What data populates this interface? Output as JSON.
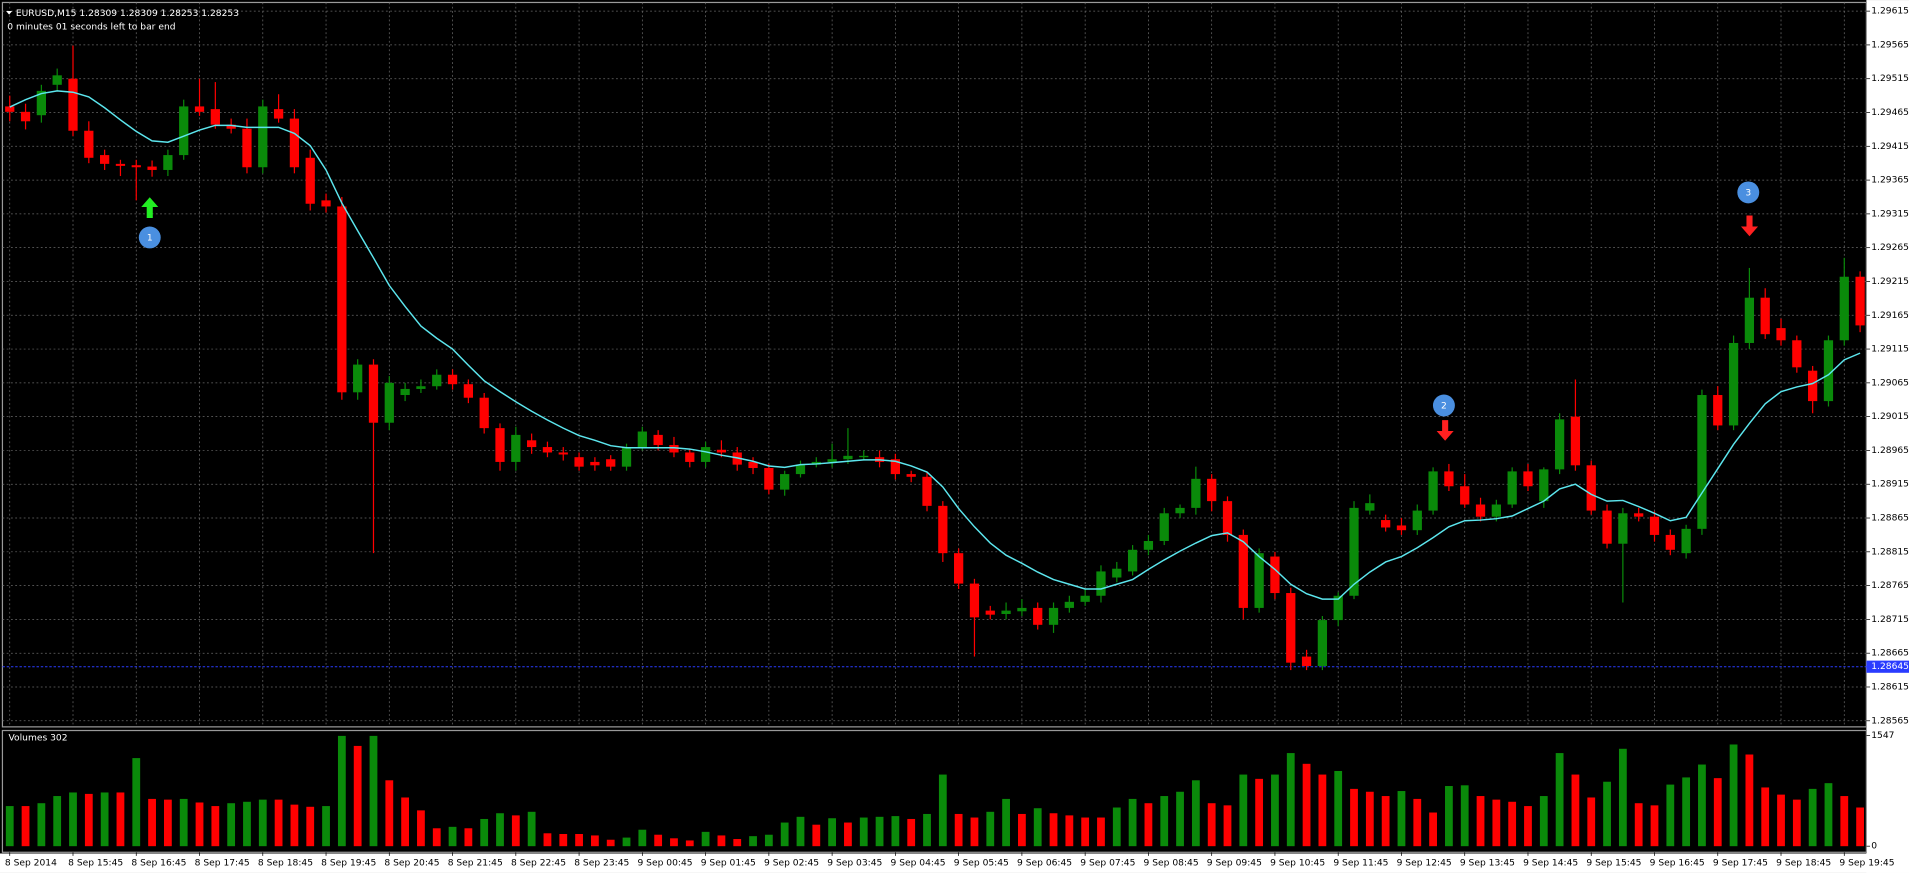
{
  "chart_data": {
    "type": "candlestick",
    "title": "EURUSD,M15 1.28309 1.28309 1.28253 1.28253",
    "subtitle": "0 minutes 01 seconds left to bar end",
    "categories": [
      "8 Sep 2014",
      null,
      null,
      null,
      "8 Sep 15:45",
      null,
      null,
      null,
      "8 Sep 16:45",
      null,
      null,
      null,
      "8 Sep 17:45",
      null,
      null,
      null,
      "8 Sep 18:45",
      null,
      null,
      null,
      "8 Sep 19:45",
      null,
      null,
      null,
      "8 Sep 20:45",
      null,
      null,
      null,
      "8 Sep 21:45",
      null,
      null,
      null,
      "8 Sep 22:45",
      null,
      null,
      null,
      "8 Sep 23:45",
      null,
      null,
      null,
      "9 Sep 00:45",
      null,
      null,
      null,
      "9 Sep 01:45",
      null,
      null,
      null,
      "9 Sep 02:45",
      null,
      null,
      null,
      "9 Sep 03:45",
      null,
      null,
      null,
      "9 Sep 04:45",
      null,
      null,
      null,
      "9 Sep 05:45",
      null,
      null,
      null,
      "9 Sep 06:45",
      null,
      null,
      null,
      "9 Sep 07:45",
      null,
      null,
      null,
      "9 Sep 08:45",
      null,
      null,
      null,
      "9 Sep 09:45",
      null,
      null,
      null,
      "9 Sep 10:45",
      null,
      null,
      null,
      "9 Sep 11:45",
      null,
      null,
      null,
      "9 Sep 12:45",
      null,
      null,
      null,
      "9 Sep 13:45",
      null,
      null,
      null,
      "9 Sep 14:45",
      null,
      null,
      null,
      "9 Sep 15:45",
      null,
      null,
      null,
      "9 Sep 16:45",
      null,
      null,
      null,
      "9 Sep 17:45",
      null,
      null,
      null,
      "9 Sep 18:45",
      null,
      null,
      null,
      "9 Sep 19:45",
      null
    ],
    "open": [
      1.29474,
      1.29466,
      1.29461,
      1.29506,
      1.29515,
      1.29438,
      1.29402,
      1.29389,
      1.29387,
      1.29385,
      1.2938,
      1.29402,
      1.29474,
      1.2947,
      1.29447,
      1.29441,
      1.29384,
      1.2947,
      1.29456,
      1.29398,
      1.29335,
      1.29326,
      1.29051,
      1.29092,
      1.29006,
      1.29047,
      1.29056,
      1.2906,
      1.29077,
      1.29063,
      1.29043,
      1.28998,
      1.28948,
      1.2898,
      1.2897,
      1.28962,
      1.28955,
      1.28948,
      1.28952,
      1.28941,
      1.2897,
      1.28988,
      1.28973,
      1.28962,
      1.28948,
      1.28966,
      1.28962,
      1.28948,
      1.28939,
      1.28907,
      1.2893,
      1.28944,
      1.28948,
      1.28952,
      1.28955,
      1.28955,
      1.28952,
      1.2893,
      1.28926,
      1.28883,
      1.28813,
      1.28768,
      1.28728,
      1.28723,
      1.28727,
      1.28732,
      1.28707,
      1.28732,
      1.28741,
      1.2875,
      1.28777,
      1.28786,
      1.28818,
      1.28831,
      1.28872,
      1.2888,
      1.28923,
      1.2889,
      1.2884,
      1.28732,
      1.28808,
      1.28754,
      1.2866,
      1.28646,
      1.28714,
      1.2875,
      1.28876,
      1.28862,
      1.28854,
      1.28847,
      1.28876,
      1.28934,
      1.28912,
      1.28885,
      1.28867,
      1.28885,
      1.28934,
      1.2889,
      1.28937,
      1.29015,
      1.28943,
      1.28876,
      1.28827,
      1.28872,
      1.28867,
      1.2884,
      1.28813,
      1.28849,
      1.29047,
      1.29002,
      1.29124,
      1.29191,
      1.29146,
      1.29128,
      1.29083,
      1.29038,
      1.29128,
      1.29222
    ],
    "high": [
      1.2949,
      1.29478,
      1.29506,
      1.2953,
      1.29564,
      1.29452,
      1.2941,
      1.29395,
      1.29395,
      1.29394,
      1.2941,
      1.29484,
      1.29515,
      1.2951,
      1.29456,
      1.29456,
      1.29484,
      1.29492,
      1.2947,
      1.2941,
      1.29345,
      1.2934,
      1.291,
      1.291,
      1.29075,
      1.29065,
      1.2907,
      1.29085,
      1.29085,
      1.2907,
      1.2905,
      1.29005,
      1.29,
      1.2899,
      1.28978,
      1.2897,
      1.28962,
      1.28955,
      1.28958,
      1.28975,
      1.29,
      1.28995,
      1.28985,
      1.28968,
      1.28978,
      1.2898,
      1.2897,
      1.28955,
      1.28945,
      1.28935,
      1.2895,
      1.28955,
      1.28975,
      1.28998,
      1.28965,
      1.28965,
      1.2896,
      1.28935,
      1.28932,
      1.2889,
      1.2882,
      1.28775,
      1.28735,
      1.2874,
      1.28745,
      1.2874,
      1.2874,
      1.2875,
      1.2876,
      1.28795,
      1.288,
      1.28825,
      1.2884,
      1.2888,
      1.28885,
      1.28941,
      1.2893,
      1.28897,
      1.28848,
      1.2882,
      1.28815,
      1.28762,
      1.2867,
      1.2872,
      1.28755,
      1.2889,
      1.289,
      1.2887,
      1.28865,
      1.28885,
      1.2894,
      1.28945,
      1.2893,
      1.28895,
      1.28892,
      1.2894,
      1.28945,
      1.2894,
      1.2902,
      1.2907,
      1.2895,
      1.28885,
      1.2888,
      1.2888,
      1.28875,
      1.28848,
      1.28855,
      1.29055,
      1.2906,
      1.29135,
      1.29235,
      1.29205,
      1.2916,
      1.29135,
      1.2909,
      1.29135,
      1.2925,
      1.2923
    ],
    "low": [
      1.29452,
      1.2944,
      1.2945,
      1.29497,
      1.2943,
      1.2939,
      1.2938,
      1.29371,
      1.29335,
      1.2937,
      1.29371,
      1.29395,
      1.2946,
      1.29441,
      1.29434,
      1.29375,
      1.29375,
      1.2945,
      1.29375,
      1.2932,
      1.29317,
      1.2904,
      1.2904,
      1.28813,
      1.28995,
      1.29038,
      1.2905,
      1.29055,
      1.29055,
      1.29035,
      1.2899,
      1.28935,
      1.28935,
      1.2896,
      1.28955,
      1.2895,
      1.28935,
      1.28935,
      1.28935,
      1.28935,
      1.28965,
      1.28965,
      1.28955,
      1.2894,
      1.2894,
      1.28955,
      1.28935,
      1.2893,
      1.289,
      1.28898,
      1.28925,
      1.2894,
      1.2894,
      1.28945,
      1.2895,
      1.2894,
      1.28922,
      1.28918,
      1.28875,
      1.288,
      1.2876,
      1.2866,
      1.28715,
      1.28715,
      1.2872,
      1.287,
      1.28695,
      1.28725,
      1.28735,
      1.2874,
      1.2877,
      1.2878,
      1.2881,
      1.28825,
      1.28865,
      1.2887,
      1.28875,
      1.2883,
      1.28715,
      1.28725,
      1.28745,
      1.2864,
      1.2864,
      1.2864,
      1.28705,
      1.28745,
      1.2887,
      1.28845,
      1.2884,
      1.2884,
      1.2887,
      1.28905,
      1.2888,
      1.2886,
      1.2886,
      1.2888,
      1.28905,
      1.2888,
      1.2893,
      1.28935,
      1.2887,
      1.2882,
      1.2874,
      1.2886,
      1.2883,
      1.2881,
      1.28805,
      1.2884,
      1.28995,
      1.28995,
      1.29115,
      1.2913,
      1.2912,
      1.2908,
      1.2902,
      1.2903,
      1.2912,
      1.2914
    ],
    "close": [
      1.29466,
      1.29452,
      1.29497,
      1.2952,
      1.29438,
      1.29398,
      1.29389,
      1.29386,
      1.29384,
      1.2938,
      1.29402,
      1.29474,
      1.29466,
      1.29447,
      1.29441,
      1.29384,
      1.29474,
      1.29456,
      1.29384,
      1.2933,
      1.29326,
      1.29051,
      1.29092,
      1.29006,
      1.29065,
      1.29056,
      1.2906,
      1.29077,
      1.29063,
      1.29043,
      1.28998,
      1.28948,
      1.28988,
      1.2897,
      1.28962,
      1.28959,
      1.28941,
      1.28943,
      1.28941,
      1.2897,
      1.28993,
      1.28973,
      1.28962,
      1.28948,
      1.2897,
      1.28962,
      1.28944,
      1.28939,
      1.28907,
      1.2893,
      1.28944,
      1.28948,
      1.28952,
      1.28957,
      1.28957,
      1.28948,
      1.2893,
      1.28926,
      1.28883,
      1.28813,
      1.28768,
      1.28718,
      1.28722,
      1.28728,
      1.28732,
      1.28707,
      1.28732,
      1.28741,
      1.2875,
      1.28786,
      1.2879,
      1.28818,
      1.28831,
      1.28872,
      1.2888,
      1.28923,
      1.2889,
      1.2884,
      1.28732,
      1.28813,
      1.28754,
      1.28651,
      1.28646,
      1.28714,
      1.2875,
      1.2888,
      1.28887,
      1.28851,
      1.28847,
      1.28876,
      1.28934,
      1.28912,
      1.28885,
      1.28867,
      1.28885,
      1.28934,
      1.28912,
      1.28937,
      1.29011,
      1.28943,
      1.28876,
      1.28827,
      1.28872,
      1.28867,
      1.2884,
      1.28818,
      1.28849,
      1.29047,
      1.29002,
      1.29124,
      1.29191,
      1.29137,
      1.29128,
      1.29088,
      1.29038,
      1.29128,
      1.29222,
      1.2915
    ],
    "up_color": "#0a8a0a",
    "down_color": "#ff0000",
    "ylim": [
      1.28556,
      1.29626
    ],
    "yticks": [
      1.28565,
      1.28615,
      1.28665,
      1.28715,
      1.28765,
      1.28815,
      1.28865,
      1.28915,
      1.28965,
      1.29015,
      1.29065,
      1.29115,
      1.29165,
      1.29215,
      1.29265,
      1.29315,
      1.29365,
      1.29415,
      1.29465,
      1.29515,
      1.29565,
      1.29615
    ],
    "grid": true,
    "grid_color": "#6a6a6a",
    "ma": {
      "color": "#5ce6ee",
      "values": [
        1.29473,
        1.29484,
        1.29493,
        1.29497,
        1.29495,
        1.29488,
        1.29472,
        1.29454,
        1.29437,
        1.29423,
        1.29421,
        1.2943,
        1.29439,
        1.29446,
        1.29446,
        1.29443,
        1.29443,
        1.29443,
        1.29434,
        1.29416,
        1.2938,
        1.29331,
        1.2929,
        1.2925,
        1.29209,
        1.29178,
        1.29149,
        1.29131,
        1.29115,
        1.29091,
        1.29068,
        1.29052,
        1.29037,
        1.29023,
        1.2901,
        1.28998,
        1.28987,
        1.2898,
        1.28972,
        1.28969,
        1.28969,
        1.28969,
        1.28969,
        1.28967,
        1.28963,
        1.28958,
        1.28954,
        1.28949,
        1.28942,
        1.2894,
        1.28944,
        1.28945,
        1.28947,
        1.28949,
        1.28951,
        1.28951,
        1.28949,
        1.28942,
        1.28933,
        1.28911,
        1.28879,
        1.28852,
        1.28828,
        1.2881,
        1.28798,
        1.28785,
        1.28774,
        1.28767,
        1.2876,
        1.2876,
        1.28767,
        1.28774,
        1.28789,
        1.28803,
        1.28816,
        1.28828,
        1.28839,
        1.28843,
        1.2883,
        1.28808,
        1.28789,
        1.28767,
        1.28753,
        1.28745,
        1.28745,
        1.28767,
        1.28785,
        1.288,
        1.28808,
        1.28821,
        1.28836,
        1.28852,
        1.28861,
        1.28862,
        1.28864,
        1.28868,
        1.28879,
        1.2889,
        1.28908,
        1.28915,
        1.289,
        1.2889,
        1.28891,
        1.28882,
        1.28872,
        1.28861,
        1.28866,
        1.28902,
        1.28938,
        1.28974,
        1.29005,
        1.29034,
        1.29052,
        1.29059,
        1.29064,
        1.29077,
        1.29099,
        1.29109
      ]
    },
    "bid": {
      "value": 1.28645,
      "color": "#2a3cff"
    },
    "markers": [
      "1",
      "2",
      "3"
    ],
    "volume": {
      "title": "Volumes 302",
      "ylim": [
        0,
        1547
      ],
      "yticks": [
        0,
        1547
      ],
      "up_color": "#0a8a0a",
      "down_color": "#ff0000",
      "values": [
        560,
        560,
        600,
        700,
        750,
        730,
        750,
        750,
        1230,
        660,
        650,
        660,
        610,
        560,
        600,
        620,
        650,
        650,
        580,
        550,
        560,
        1540,
        1400,
        1540,
        920,
        680,
        500,
        250,
        270,
        250,
        380,
        460,
        430,
        480,
        180,
        170,
        170,
        150,
        90,
        120,
        230,
        160,
        110,
        80,
        200,
        150,
        100,
        140,
        160,
        330,
        410,
        300,
        390,
        330,
        400,
        410,
        420,
        380,
        450,
        1000,
        450,
        400,
        480,
        660,
        450,
        530,
        460,
        430,
        400,
        400,
        540,
        660,
        600,
        700,
        760,
        920,
        600,
        570,
        1000,
        940,
        1000,
        1300,
        1150,
        1000,
        1050,
        800,
        760,
        700,
        770,
        660,
        470,
        840,
        850,
        700,
        650,
        620,
        560,
        700,
        1300,
        1000,
        680,
        900,
        1360,
        600,
        570,
        860,
        960,
        1140,
        950,
        1420,
        1280,
        820,
        720,
        650,
        800,
        880,
        700,
        540
      ]
    }
  }
}
